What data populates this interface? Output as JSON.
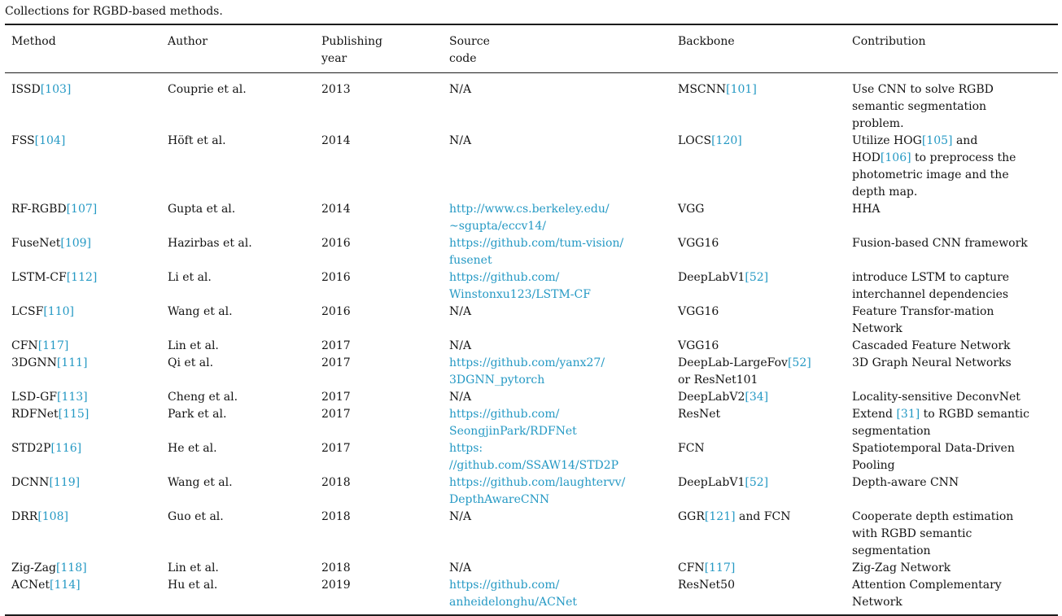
{
  "caption": "Collections for RGBD-based methods.",
  "colors": {
    "link_cyan": "#2599c4",
    "text": "#131313",
    "rule": "#1c1c1c",
    "background": "#ffffff"
  },
  "table": {
    "headers": [
      "Method",
      "Author",
      "Publishing\nyear",
      "Source\ncode",
      "Backbone",
      "Contribution"
    ],
    "rows": [
      {
        "method": "ISSD[103]",
        "author": "Couprie et al.",
        "year": "2013",
        "source": "N/A",
        "backbone": "MSCNN[101]",
        "contribution": "Use CNN to solve RGBD\nsemantic segmentation\nproblem."
      },
      {
        "method": "FSS[104]",
        "author": "Höft et al.",
        "year": "2014",
        "source": "N/A",
        "backbone": "LOCS[120]",
        "contribution": "Utilize HOG[105] and\nHOD[106] to preprocess the\nphotometric image and the\ndepth map."
      },
      {
        "method": "RF-RGBD[107]",
        "author": "Gupta et al.",
        "year": "2014",
        "source": "http://www.cs.berkeley.edu/\n~sgupta/eccv14/",
        "backbone": "VGG",
        "contribution": "HHA"
      },
      {
        "method": "FuseNet[109]",
        "author": "Hazirbas et al.",
        "year": "2016",
        "source": "https://github.com/tum-vision/\nfusenet",
        "backbone": "VGG16",
        "contribution": "Fusion-based CNN framework"
      },
      {
        "method": "LSTM-CF[112]",
        "author": "Li et al.",
        "year": "2016",
        "source": "https://github.com/\nWinstonxu123/LSTM-CF",
        "backbone": "DeepLabV1[52]",
        "contribution": "introduce LSTM to capture\ninterchannel dependencies"
      },
      {
        "method": "LCSF[110]",
        "author": "Wang et al.",
        "year": "2016",
        "source": "N/A",
        "backbone": "VGG16",
        "contribution": "Feature Transfor-mation\nNetwork"
      },
      {
        "method": "CFN[117]",
        "author": "Lin et al.",
        "year": "2017",
        "source": "N/A",
        "backbone": "VGG16",
        "contribution": "Cascaded Feature Network"
      },
      {
        "method": "3DGNN[111]",
        "author": "Qi et al.",
        "year": "2017",
        "source": "https://github.com/yanx27/\n3DGNN_pytorch",
        "backbone": "DeepLab-LargeFov[52]\nor ResNet101",
        "contribution": "3D Graph Neural Networks"
      },
      {
        "method": "LSD-GF[113]",
        "author": "Cheng et al.",
        "year": "2017",
        "source": "N/A",
        "backbone": "DeepLabV2[34]",
        "contribution": "Locality-sensitive DeconvNet"
      },
      {
        "method": "RDFNet[115]",
        "author": "Park et al.",
        "year": "2017",
        "source": "https://github.com/\nSeongjinPark/RDFNet",
        "backbone": "ResNet",
        "contribution": "Extend [31] to RGBD semantic\nsegmentation"
      },
      {
        "method": "STD2P[116]",
        "author": "He et al.",
        "year": "2017",
        "source": "https:\n//github.com/SSAW14/STD2P",
        "backbone": "FCN",
        "contribution": "Spatiotemporal Data-Driven\nPooling"
      },
      {
        "method": "DCNN[119]",
        "author": "Wang et al.",
        "year": "2018",
        "source": "https://github.com/laughtervv/\nDepthAwareCNN",
        "backbone": "DeepLabV1[52]",
        "contribution": "Depth-aware CNN"
      },
      {
        "method": "DRR[108]",
        "author": "Guo et al.",
        "year": "2018",
        "source": "N/A",
        "backbone": "GGR[121] and FCN",
        "contribution": "Cooperate depth estimation\nwith RGBD semantic\nsegmentation"
      },
      {
        "method": "Zig-Zag[118]",
        "author": "Lin et al.",
        "year": "2018",
        "source": "N/A",
        "backbone": "CFN[117]",
        "contribution": "Zig-Zag Network"
      },
      {
        "method": "ACNet[114]",
        "author": "Hu et al.",
        "year": "2019",
        "source": "https://github.com/\nanheidelonghu/ACNet",
        "backbone": "ResNet50",
        "contribution": "Attention Complementary\nNetwork"
      }
    ]
  }
}
